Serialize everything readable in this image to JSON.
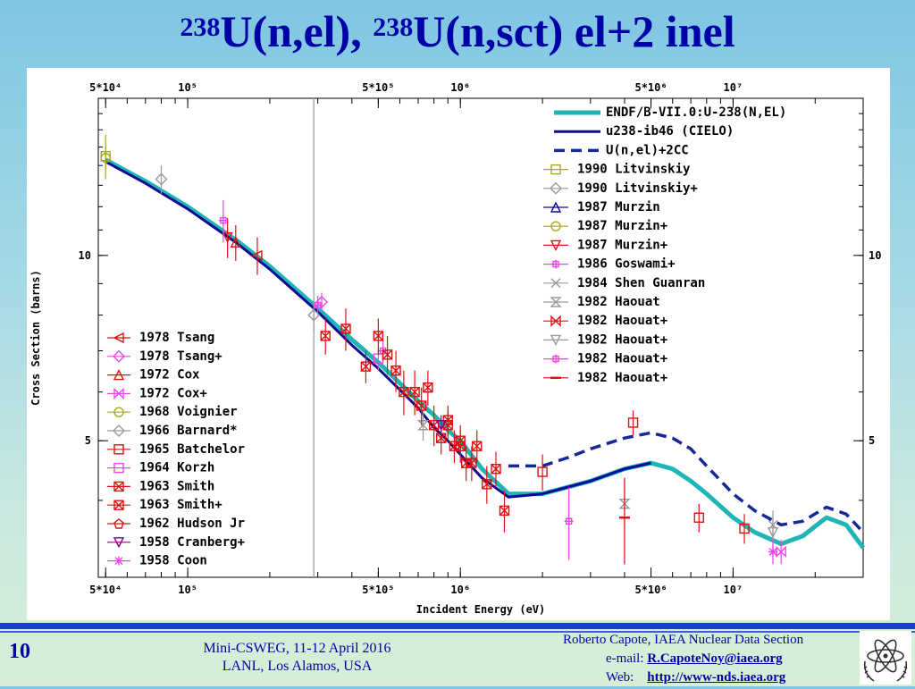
{
  "slide": {
    "title_mass_1": "238",
    "title_part_1": "U(n,el), ",
    "title_mass_2": "238",
    "title_part_2": "U(n,sct) el+2 inel",
    "number": "10",
    "meeting_line1": "Mini-CSWEG, 11-12 April 2016",
    "meeting_line2": "LANL, Los Alamos, USA",
    "author_line": "Roberto Capote, IAEA Nuclear Data Section",
    "email_label": "e-mail:",
    "email": "R.CapoteNoy@iaea.org",
    "web_label": "Web:",
    "web": "http://www-nds.iaea.org"
  },
  "colors": {
    "title": "#0000a8",
    "endf": "#1fb5b5",
    "cielo": "#0a0a96",
    "u_el_2cc": "#142896",
    "exp_red": "#dd1111",
    "exp_magenta": "#ee44ee",
    "exp_gray": "#9a9a9a",
    "exp_olive": "#a8a820"
  },
  "chart_data": {
    "type": "line",
    "xlabel": "Incident Energy (eV)",
    "ylabel": "Cross Section (barns)",
    "xscale": "log",
    "yscale": "log",
    "xlim": [
      47000,
      30000000
    ],
    "ylim": [
      3.0,
      18.0
    ],
    "x_ticks": [
      {
        "value": 50000,
        "label": "5*10⁴"
      },
      {
        "value": 100000,
        "label": "10⁵"
      },
      {
        "value": 500000,
        "label": "5*10⁵"
      },
      {
        "value": 1000000,
        "label": "10⁶"
      },
      {
        "value": 5000000,
        "label": "5*10⁶"
      },
      {
        "value": 10000000,
        "label": "10⁷"
      }
    ],
    "y_ticks": [
      {
        "value": 10,
        "label": "10"
      },
      {
        "value": 5,
        "label": "5"
      }
    ],
    "vertical_line_x": 290000,
    "series": [
      {
        "name": "ENDF/B-VII.0:U-238(N,EL)",
        "style": "thick",
        "x": [
          50000,
          70000,
          100000,
          150000,
          200000,
          300000,
          400000,
          500000,
          600000,
          700000,
          800000,
          900000,
          1000000,
          1200000,
          1500000,
          2000000,
          3000000,
          4000000,
          5000000,
          6000000,
          7000000,
          8000000,
          10000000,
          12000000,
          15000000,
          18000000,
          22000000,
          26000000,
          30000000
        ],
        "y": [
          14.3,
          13.2,
          12.0,
          10.6,
          9.6,
          8.2,
          7.3,
          6.7,
          6.2,
          5.8,
          5.5,
          5.2,
          5.0,
          4.5,
          4.1,
          4.1,
          4.3,
          4.5,
          4.6,
          4.5,
          4.3,
          4.1,
          3.75,
          3.55,
          3.4,
          3.5,
          3.75,
          3.65,
          3.35
        ]
      },
      {
        "name": "u238-ib46 (CIELO)",
        "style": "solid",
        "x": [
          50000,
          70000,
          100000,
          150000,
          200000,
          300000,
          400000,
          500000,
          600000,
          700000,
          800000,
          900000,
          1000000,
          1200000,
          1500000,
          2000000,
          3000000,
          4000000,
          5000000
        ],
        "y": [
          14.2,
          13.1,
          11.9,
          10.5,
          9.5,
          8.1,
          7.15,
          6.55,
          6.05,
          5.65,
          5.25,
          5.0,
          4.75,
          4.35,
          4.05,
          4.1,
          4.3,
          4.5,
          4.6
        ]
      },
      {
        "name": "U(n,el)+2CC",
        "style": "dashed",
        "x": [
          1500000,
          2000000,
          2500000,
          3000000,
          4000000,
          5000000,
          6000000,
          7000000,
          8000000,
          10000000,
          12000000,
          15000000,
          18000000,
          22000000,
          26000000,
          30000000
        ],
        "y": [
          4.55,
          4.55,
          4.7,
          4.85,
          5.05,
          5.15,
          5.05,
          4.85,
          4.55,
          4.1,
          3.85,
          3.65,
          3.7,
          3.9,
          3.8,
          3.55
        ]
      }
    ],
    "experiments": [
      {
        "name": "1990 Litvinskiy",
        "marker": "square",
        "color": "#a8a820",
        "points": [
          [
            50000,
            14.5,
            1.2
          ]
        ]
      },
      {
        "name": "1990 Litvinskiy+",
        "marker": "diamond",
        "color": "#9a9a9a",
        "points": [
          [
            80000,
            13.3,
            0.7
          ]
        ]
      },
      {
        "name": "1987 Murzin",
        "marker": "triangle",
        "color": "#0a0a96",
        "points": []
      },
      {
        "name": "1987 Murzin+",
        "marker": "circle",
        "color": "#a8a820",
        "points": [
          [
            50000,
            14.4,
            0.6
          ]
        ]
      },
      {
        "name": "1987 Murzin+",
        "marker": "triangle-down",
        "color": "#dd1111",
        "points": [
          [
            140000,
            10.7,
            0.8
          ]
        ]
      },
      {
        "name": "1986 Goswami+",
        "marker": "plus",
        "color": "#ee44ee",
        "points": [
          [
            135000,
            11.4,
            0.9
          ]
        ]
      },
      {
        "name": "1984 Shen Guanran",
        "marker": "x",
        "color": "#9a9a9a",
        "points": [
          [
            14000000,
            3.65,
            0.2
          ]
        ]
      },
      {
        "name": "1982 Haouat",
        "marker": "hourglass",
        "color": "#9a9a9a",
        "points": [
          [
            4000000,
            3.95,
            0.4
          ],
          [
            730000,
            5.3,
            0.3
          ]
        ]
      },
      {
        "name": "1982 Haouat+",
        "marker": "bowtie",
        "color": "#dd1111",
        "points": []
      },
      {
        "name": "1982 Haouat+",
        "marker": "triangle-down",
        "color": "#9a9a9a",
        "points": [
          [
            14000000,
            3.55,
            0.2
          ]
        ]
      },
      {
        "name": "1982 Haouat+",
        "marker": "plus",
        "color": "#ee44ee",
        "points": [
          [
            2500000,
            3.7,
            0.5
          ],
          [
            300000,
            8.3,
            0.3
          ],
          [
            520000,
            7.0,
            0.3
          ]
        ]
      },
      {
        "name": "1982 Haouat+",
        "marker": "dash",
        "color": "#dd1111",
        "points": [
          [
            4000000,
            3.75,
            0.6
          ]
        ]
      },
      {
        "name": "1978 Tsang",
        "marker": "triangle-left",
        "color": "#dd1111",
        "points": [
          [
            180000,
            10.0,
            0.7
          ]
        ]
      },
      {
        "name": "1978 Tsang+",
        "marker": "diamond",
        "color": "#ee44ee",
        "points": [
          [
            310000,
            8.4,
            0.3
          ]
        ]
      },
      {
        "name": "1972 Cox",
        "marker": "triangle",
        "color": "#dd1111",
        "points": [
          [
            150000,
            10.5,
            0.7
          ]
        ]
      },
      {
        "name": "1972 Cox+",
        "marker": "bowtie",
        "color": "#ee44ee",
        "points": [
          [
            15000000,
            3.3,
            0.15
          ]
        ]
      },
      {
        "name": "1968 Voignier",
        "marker": "circle",
        "color": "#a8a820",
        "points": []
      },
      {
        "name": "1966 Barnard*",
        "marker": "diamond",
        "color": "#9a9a9a",
        "points": [
          [
            290000,
            8.0,
            0.5
          ]
        ]
      },
      {
        "name": "1965 Batchelor",
        "marker": "square",
        "color": "#dd1111",
        "points": [
          [
            4300000,
            5.35,
            0.25
          ],
          [
            7500000,
            3.75,
            0.2
          ],
          [
            2000000,
            4.45,
            0.3
          ],
          [
            11000000,
            3.6,
            0.2
          ]
        ]
      },
      {
        "name": "1964 Korzh",
        "marker": "square",
        "color": "#ee44ee",
        "points": [
          [
            500000,
            6.8,
            0.3
          ]
        ]
      },
      {
        "name": "1963 Smith",
        "marker": "square-x",
        "color": "#dd1111",
        "points": [
          [
            320000,
            7.4,
            0.5
          ],
          [
            380000,
            7.6,
            0.6
          ],
          [
            450000,
            6.6,
            0.4
          ],
          [
            500000,
            7.4,
            0.5
          ],
          [
            540000,
            6.9,
            0.5
          ],
          [
            580000,
            6.5,
            0.5
          ],
          [
            620000,
            6.0,
            0.5
          ],
          [
            680000,
            6.0,
            0.5
          ],
          [
            720000,
            5.7,
            0.4
          ],
          [
            760000,
            6.1,
            0.4
          ],
          [
            800000,
            5.3,
            0.4
          ],
          [
            850000,
            5.05,
            0.3
          ],
          [
            900000,
            5.3,
            0.3
          ],
          [
            950000,
            4.9,
            0.3
          ],
          [
            1000000,
            4.9,
            0.3
          ],
          [
            1050000,
            4.6,
            0.3
          ],
          [
            1100000,
            4.6,
            0.3
          ],
          [
            1150000,
            4.9,
            0.3
          ],
          [
            1250000,
            4.25,
            0.3
          ],
          [
            1350000,
            4.5,
            0.3
          ],
          [
            1450000,
            3.85,
            0.3
          ]
        ]
      },
      {
        "name": "1963 Smith+",
        "marker": "square-x",
        "color": "#dd1111",
        "points": [
          [
            900000,
            5.4,
            0.3
          ],
          [
            1000000,
            5.0,
            0.3
          ]
        ]
      },
      {
        "name": "1962 Hudson Jr",
        "marker": "pentagon",
        "color": "#dd1111",
        "points": []
      },
      {
        "name": "1958 Cranberg+",
        "marker": "triangle-down",
        "color": "#880088",
        "points": [
          [
            850000,
            5.3,
            0.2
          ]
        ]
      },
      {
        "name": "1958 Coon",
        "marker": "star",
        "color": "#ee44ee",
        "points": [
          [
            14000000,
            3.3,
            0.15
          ]
        ]
      }
    ],
    "legend": "right",
    "grid": false
  }
}
